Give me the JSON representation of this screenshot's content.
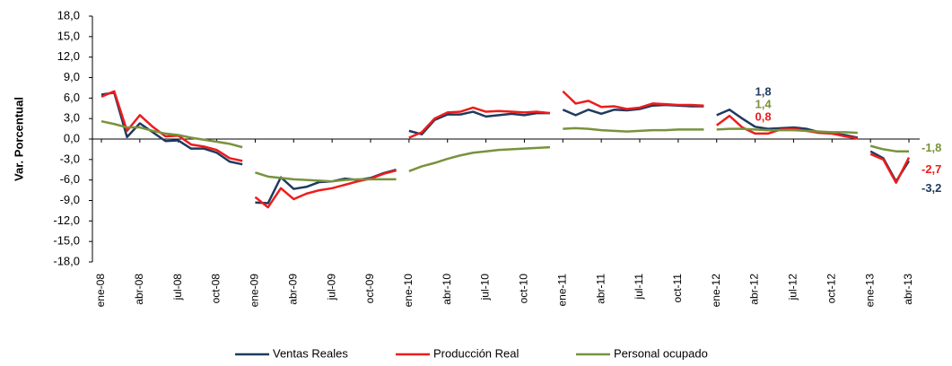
{
  "chart_data": {
    "type": "line",
    "y_label": "Var. Porcentual",
    "categories": [
      "ene-08",
      null,
      null,
      "abr-08",
      null,
      null,
      "jul-08",
      null,
      null,
      "oct-08",
      null,
      null,
      "ene-09",
      null,
      null,
      "abr-09",
      null,
      null,
      "jul-09",
      null,
      null,
      "oct-09",
      null,
      null,
      "ene-10",
      null,
      null,
      "abr-10",
      null,
      null,
      "jul-10",
      null,
      null,
      "oct-10",
      null,
      null,
      "ene-11",
      null,
      null,
      "abr-11",
      null,
      null,
      "jul-11",
      null,
      null,
      "oct-11",
      null,
      null,
      "ene-12",
      null,
      null,
      "abr-12",
      null,
      null,
      "jul-12",
      null,
      null,
      "oct-12",
      null,
      null,
      "ene-13",
      null,
      null,
      "abr-13"
    ],
    "break_every": 12,
    "series": [
      {
        "name": "Ventas Reales",
        "color": "#1f3a5f",
        "values": [
          6.5,
          6.8,
          0.3,
          2.3,
          1.0,
          -0.3,
          -0.2,
          -1.4,
          -1.4,
          -2.0,
          -3.3,
          -3.7,
          -9.3,
          -9.4,
          -5.6,
          -7.3,
          -7.0,
          -6.3,
          -6.2,
          -5.8,
          -6.0,
          -5.7,
          -5.0,
          -4.5,
          1.2,
          0.7,
          2.8,
          3.6,
          3.6,
          4.0,
          3.3,
          3.5,
          3.7,
          3.5,
          3.8,
          3.8,
          4.3,
          3.5,
          4.3,
          3.7,
          4.3,
          4.2,
          4.4,
          4.9,
          5.0,
          4.9,
          4.8,
          4.8,
          3.5,
          4.3,
          3.0,
          1.8,
          1.5,
          1.6,
          1.7,
          1.5,
          1.0,
          0.8,
          0.6,
          0.2,
          -1.8,
          -2.8,
          -6.2,
          -3.2
        ],
        "value_labels": [
          null,
          null,
          null,
          null,
          null,
          null,
          null,
          null,
          null,
          null,
          null,
          null,
          null,
          null,
          null,
          null,
          null,
          null,
          null,
          null,
          null,
          null,
          null,
          null,
          null,
          null,
          null,
          null,
          null,
          null,
          null,
          null,
          null,
          null,
          null,
          null,
          null,
          null,
          null,
          null,
          null,
          null,
          null,
          null,
          null,
          null,
          null,
          null,
          null,
          null,
          null,
          "1,8",
          null,
          null,
          null,
          null,
          null,
          null,
          null,
          null,
          null,
          null,
          null,
          "-3,2"
        ]
      },
      {
        "name": "Producción Real",
        "color": "#ee1c1c",
        "values": [
          6.2,
          7.0,
          1.2,
          3.5,
          1.8,
          0.4,
          0.5,
          -0.8,
          -1.1,
          -1.6,
          -2.8,
          -3.2,
          -8.5,
          -10.0,
          -7.2,
          -8.8,
          -8.0,
          -7.5,
          -7.2,
          -6.7,
          -6.2,
          -5.8,
          -5.1,
          -4.6,
          0.2,
          1.0,
          3.0,
          3.9,
          4.0,
          4.6,
          4.0,
          4.1,
          4.0,
          3.9,
          4.0,
          3.8,
          7.0,
          5.2,
          5.6,
          4.7,
          4.8,
          4.4,
          4.6,
          5.2,
          5.1,
          5.0,
          5.0,
          4.9,
          2.0,
          3.4,
          1.7,
          0.8,
          0.8,
          1.4,
          1.5,
          1.2,
          0.9,
          0.8,
          0.4,
          0.1,
          -2.2,
          -3.0,
          -6.4,
          -2.7
        ],
        "value_labels": [
          null,
          null,
          null,
          null,
          null,
          null,
          null,
          null,
          null,
          null,
          null,
          null,
          null,
          null,
          null,
          null,
          null,
          null,
          null,
          null,
          null,
          null,
          null,
          null,
          null,
          null,
          null,
          null,
          null,
          null,
          null,
          null,
          null,
          null,
          null,
          null,
          null,
          null,
          null,
          null,
          null,
          null,
          null,
          null,
          null,
          null,
          null,
          null,
          null,
          null,
          null,
          "0,8",
          null,
          null,
          null,
          null,
          null,
          null,
          null,
          null,
          null,
          null,
          null,
          "-2,7"
        ]
      },
      {
        "name": "Personal ocupado",
        "color": "#77933c",
        "values": [
          2.6,
          2.2,
          1.7,
          1.7,
          1.2,
          0.8,
          0.6,
          0.2,
          -0.1,
          -0.4,
          -0.7,
          -1.2,
          -4.9,
          -5.5,
          -5.7,
          -5.9,
          -6.0,
          -6.1,
          -6.2,
          -6.0,
          -5.9,
          -5.9,
          -5.9,
          -5.9,
          -4.7,
          -4.0,
          -3.5,
          -2.9,
          -2.4,
          -2.0,
          -1.8,
          -1.6,
          -1.5,
          -1.4,
          -1.3,
          -1.2,
          1.5,
          1.6,
          1.5,
          1.3,
          1.2,
          1.1,
          1.2,
          1.3,
          1.3,
          1.4,
          1.4,
          1.4,
          1.4,
          1.5,
          1.5,
          1.4,
          1.3,
          1.3,
          1.3,
          1.2,
          1.1,
          1.0,
          1.0,
          0.9,
          -1.0,
          -1.5,
          -1.8,
          -1.8
        ],
        "value_labels": [
          null,
          null,
          null,
          null,
          null,
          null,
          null,
          null,
          null,
          null,
          null,
          null,
          null,
          null,
          null,
          null,
          null,
          null,
          null,
          null,
          null,
          null,
          null,
          null,
          null,
          null,
          null,
          null,
          null,
          null,
          null,
          null,
          null,
          null,
          null,
          null,
          null,
          null,
          null,
          null,
          null,
          null,
          null,
          null,
          null,
          null,
          null,
          null,
          null,
          null,
          null,
          "1,4",
          null,
          null,
          null,
          null,
          null,
          null,
          null,
          null,
          null,
          null,
          null,
          "-1,8"
        ]
      }
    ],
    "ylim": [
      -18,
      18
    ],
    "yticks": [
      {
        "value": -18,
        "label": "-18,0"
      },
      {
        "value": -15,
        "label": "-15,0"
      },
      {
        "value": -12,
        "label": "-12,0"
      },
      {
        "value": -9,
        "label": "-9,0"
      },
      {
        "value": -6,
        "label": "-6,0"
      },
      {
        "value": -3,
        "label": "-3,0"
      },
      {
        "value": 0,
        "label": "0,0"
      },
      {
        "value": 3,
        "label": "3,0"
      },
      {
        "value": 6,
        "label": "6,0"
      },
      {
        "value": 9,
        "label": "9,0"
      },
      {
        "value": 12,
        "label": "12,0"
      },
      {
        "value": 15,
        "label": "15,0"
      },
      {
        "value": 18,
        "label": "18,0"
      }
    ],
    "legend": "bottom"
  }
}
